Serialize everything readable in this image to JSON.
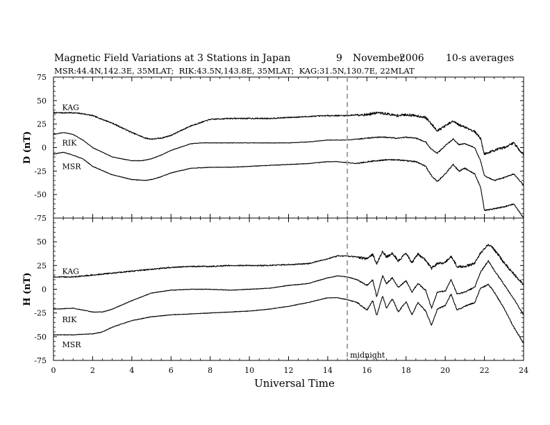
{
  "chart_data": {
    "type": "line",
    "title_parts": {
      "main": "Magnetic Field Variations at 3 Stations in Japan",
      "day": "9",
      "month": "November",
      "year": "2006",
      "averaging": "10-s averages"
    },
    "subtitle": "MSR:44.4N,142.3E, 35MLAT;  RIK:43.5N,143.8E, 35MLAT;  KAG:31.5N,130.7E, 22MLAT",
    "xlabel": "Universal Time",
    "xlim": [
      0,
      24
    ],
    "x_ticks": [
      "0",
      "2",
      "4",
      "6",
      "8",
      "10",
      "12",
      "14",
      "16",
      "18",
      "20",
      "22",
      "24"
    ],
    "marker": {
      "x": 15,
      "label": "midnight",
      "color": "#a0a0a0"
    },
    "panels": [
      {
        "ylabel": "D (nT)",
        "ylim": [
          -75,
          75
        ],
        "y_ticks": [
          "75",
          "50",
          "25",
          "0",
          "-25",
          "-50",
          "-75"
        ],
        "series": [
          {
            "name": "KAG",
            "label_at": [
              0.3,
              43
            ],
            "noise": 0.6,
            "x": [
              0,
              0.5,
              1,
              1.5,
              2,
              3,
              4,
              4.7,
              5,
              5.5,
              6,
              7,
              8,
              9,
              10,
              11,
              12,
              13,
              14,
              15,
              15.5,
              16,
              16.5,
              17,
              17.5,
              18,
              18.5,
              19,
              19.3,
              19.6,
              20,
              20.4,
              20.7,
              21,
              21.5,
              21.8,
              22,
              22.5,
              23,
              23.5,
              24
            ],
            "y": [
              37,
              37,
              37,
              36,
              34,
              26,
              16,
              10,
              9,
              10,
              13,
              23,
              30,
              31,
              31,
              31,
              32,
              33,
              34,
              34,
              35,
              35,
              37,
              36,
              34,
              35,
              34,
              32,
              25,
              18,
              23,
              28,
              24,
              22,
              17,
              10,
              -7,
              -3,
              0,
              5,
              -8
            ]
          },
          {
            "name": "RIK",
            "label_at": [
              0.3,
              5
            ],
            "noise": 0.25,
            "x": [
              0,
              0.5,
              1,
              1.5,
              2,
              3,
              4,
              4.5,
              5,
              5.5,
              6,
              7,
              7.5,
              8,
              9,
              10,
              11,
              12,
              13,
              14,
              15,
              15.5,
              16,
              16.5,
              17,
              17.5,
              18,
              18.5,
              19,
              19.3,
              19.6,
              20,
              20.4,
              20.7,
              21,
              21.5,
              21.8,
              22,
              22.5,
              23,
              23.5,
              24
            ],
            "y": [
              14,
              16,
              14,
              8,
              0,
              -10,
              -14,
              -14,
              -12,
              -8,
              -3,
              4,
              5,
              5,
              5,
              5,
              5,
              5,
              6,
              8,
              8,
              9,
              10,
              11,
              11,
              10,
              11,
              10,
              6,
              -2,
              -6,
              2,
              9,
              3,
              4,
              0,
              -14,
              -30,
              -35,
              -32,
              -28,
              -40
            ]
          },
          {
            "name": "MSR",
            "label_at": [
              0.3,
              -20
            ],
            "noise": 0.3,
            "x": [
              0,
              0.5,
              1,
              1.5,
              2,
              3,
              4,
              4.7,
              5,
              5.5,
              6,
              7,
              8,
              9,
              10,
              11,
              12,
              13,
              14,
              14.5,
              15,
              15.5,
              16,
              16.5,
              17,
              17.5,
              18,
              18.5,
              19,
              19.3,
              19.6,
              20,
              20.4,
              20.7,
              21,
              21.5,
              21.8,
              22,
              22.5,
              23,
              23.5,
              24
            ],
            "y": [
              -7,
              -5,
              -8,
              -12,
              -20,
              -29,
              -34,
              -35,
              -34,
              -31,
              -27,
              -22,
              -21,
              -21,
              -20,
              -19,
              -18,
              -17,
              -15,
              -15,
              -16,
              -17,
              -15,
              -14,
              -13,
              -13,
              -14,
              -15,
              -20,
              -30,
              -36,
              -28,
              -18,
              -25,
              -22,
              -28,
              -42,
              -67,
              -65,
              -63,
              -60,
              -75
            ]
          }
        ]
      },
      {
        "ylabel": "H (nT)",
        "ylim": [
          -75,
          75
        ],
        "y_ticks": [
          "",
          "50",
          "25",
          "0",
          "-25",
          "-50",
          "-75"
        ],
        "series": [
          {
            "name": "KAG",
            "label_at": [
              0.3,
              19
            ],
            "noise": 0.6,
            "x": [
              0,
              1,
              2,
              3,
              4,
              5,
              6,
              7,
              8,
              9,
              10,
              11,
              12,
              13,
              14,
              14.5,
              15,
              15.5,
              16,
              16.3,
              16.5,
              16.8,
              17,
              17.3,
              17.6,
              18,
              18.3,
              18.6,
              19,
              19.3,
              19.6,
              20,
              20.3,
              20.6,
              21,
              21.5,
              21.8,
              22.2,
              22.5,
              23,
              23.5,
              24
            ],
            "y": [
              13,
              13,
              15,
              17,
              19,
              21,
              23,
              24,
              24,
              25,
              25,
              25,
              26,
              27,
              32,
              35,
              35,
              34,
              32,
              37,
              27,
              40,
              34,
              38,
              30,
              38,
              28,
              37,
              31,
              22,
              27,
              28,
              35,
              24,
              24,
              27,
              38,
              47,
              42,
              28,
              16,
              5
            ]
          },
          {
            "name": "RIK",
            "label_at": [
              0.3,
              -32
            ],
            "noise": 0.3,
            "x": [
              0,
              1,
              2,
              2.5,
              3,
              4,
              5,
              6,
              7,
              8,
              9,
              10,
              11,
              12,
              13,
              14,
              14.5,
              15,
              15.5,
              16,
              16.3,
              16.5,
              16.8,
              17,
              17.3,
              17.6,
              18,
              18.3,
              18.6,
              19,
              19.3,
              19.6,
              20,
              20.3,
              20.6,
              21,
              21.5,
              21.8,
              22.2,
              22.5,
              23,
              23.5,
              24
            ],
            "y": [
              -21,
              -20,
              -24,
              -24,
              -21,
              -12,
              -4,
              -1,
              0,
              0,
              -1,
              0,
              1,
              4,
              6,
              12,
              14,
              13,
              10,
              4,
              10,
              -8,
              14,
              6,
              12,
              2,
              9,
              -3,
              6,
              -1,
              -20,
              -3,
              -2,
              10,
              -5,
              -3,
              2,
              18,
              30,
              20,
              5,
              -10,
              -27
            ]
          },
          {
            "name": "MSR",
            "label_at": [
              0.3,
              -58
            ],
            "noise": 0.3,
            "x": [
              0,
              1,
              2,
              2.5,
              3,
              4,
              5,
              6,
              7,
              8,
              9,
              10,
              11,
              12,
              13,
              14,
              14.5,
              15,
              15.5,
              16,
              16.3,
              16.5,
              16.8,
              17,
              17.3,
              17.6,
              18,
              18.3,
              18.6,
              19,
              19.3,
              19.6,
              20,
              20.3,
              20.6,
              21,
              21.5,
              21.8,
              22.2,
              22.5,
              23,
              23.5,
              24
            ],
            "y": [
              -48,
              -48,
              -47,
              -45,
              -40,
              -33,
              -29,
              -27,
              -26,
              -25,
              -24,
              -23,
              -21,
              -18,
              -14,
              -9,
              -9,
              -11,
              -14,
              -22,
              -12,
              -28,
              -7,
              -20,
              -10,
              -24,
              -13,
              -27,
              -14,
              -23,
              -38,
              -21,
              -17,
              -5,
              -22,
              -18,
              -14,
              1,
              5,
              -3,
              -20,
              -40,
              -57
            ]
          }
        ]
      }
    ]
  }
}
